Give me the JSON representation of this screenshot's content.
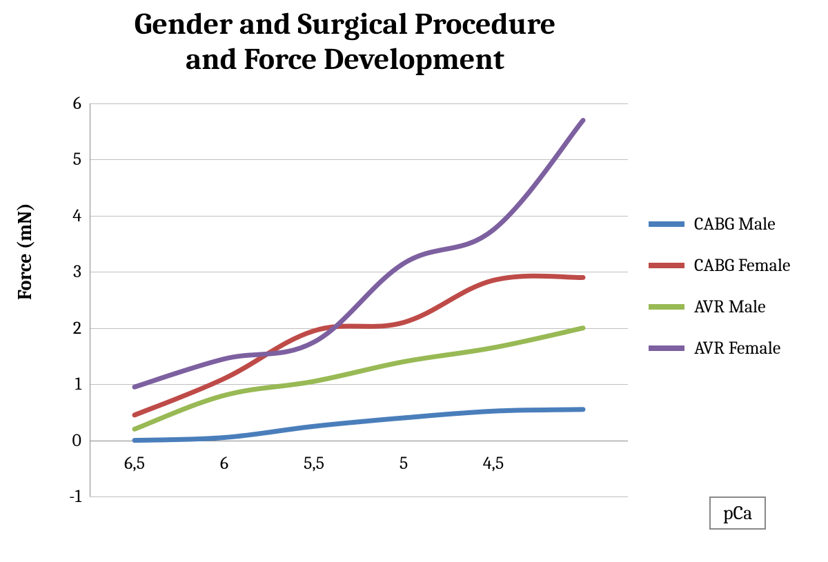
{
  "chart": {
    "type": "line",
    "title": "Gender and Surgical Procedure\nand Force Development",
    "title_fontsize": 44,
    "title_fontweight": "bold",
    "ylabel": "Force (mN)",
    "ylabel_fontsize": 28,
    "xlabel_box": "pCa",
    "xlabel_fontsize": 28,
    "background_color": "#ffffff",
    "grid_color": "#bfbfbf",
    "axis_color": "#8a8a8a",
    "ylim": [
      -1,
      6
    ],
    "ytick_step": 1,
    "yticks": [
      -1,
      0,
      1,
      2,
      3,
      4,
      5,
      6
    ],
    "x_categories": [
      "6,5",
      "6",
      "5,5",
      "5",
      "4,5",
      ""
    ],
    "x_count": 6,
    "line_width": 7,
    "series": [
      {
        "name": "CABG Male",
        "color": "#4a7ebb",
        "values": [
          0.0,
          0.05,
          0.25,
          0.4,
          0.52,
          0.55
        ]
      },
      {
        "name": "CABG Female",
        "color": "#be4b48",
        "values": [
          0.45,
          1.1,
          1.95,
          2.1,
          2.85,
          2.9
        ]
      },
      {
        "name": "AVR Male",
        "color": "#98b954",
        "values": [
          0.2,
          0.8,
          1.05,
          1.4,
          1.65,
          2.0
        ]
      },
      {
        "name": "AVR Female",
        "color": "#7d60a0",
        "values": [
          0.95,
          1.45,
          1.75,
          3.15,
          3.75,
          5.7
        ]
      }
    ],
    "legend": {
      "position": "right",
      "swatch_width": 52,
      "swatch_height": 8,
      "fontsize": 26
    }
  }
}
